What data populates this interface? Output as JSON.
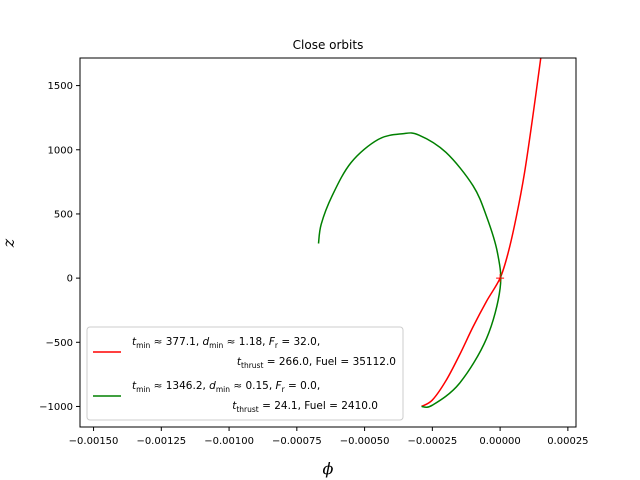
{
  "chart_data": {
    "type": "line",
    "title": "Close orbits",
    "xlabel": "ϕ",
    "ylabel": "z",
    "xlim": [
      -0.00155,
      0.00028
    ],
    "ylim": [
      -1160,
      1715
    ],
    "xticks": [
      -0.0015,
      -0.00125,
      -0.001,
      -0.00075,
      -0.0005,
      -0.00025,
      0.0,
      0.00025
    ],
    "xtick_labels": [
      "−0.00150",
      "−0.00125",
      "−0.00100",
      "−0.00075",
      "−0.00050",
      "−0.00025",
      "0.00000",
      "0.00025"
    ],
    "yticks": [
      -1000,
      -500,
      0,
      500,
      1000,
      1500
    ],
    "ytick_labels": [
      "−1000",
      "−500",
      "0",
      "500",
      "1000",
      "1500"
    ],
    "grid": false,
    "legend_position": "lower-left",
    "marker": {
      "x": 0.0,
      "y": 0,
      "symbol": "+"
    },
    "series": [
      {
        "color": "#ff0000",
        "legend_line1": {
          "t_sym": "t",
          "t_sub": "min",
          "t_val": " ≈  377.1, ",
          "d_sym": "d",
          "d_sub": "min",
          "d_val": " ≈ 1.18, ",
          "f_sym": "F",
          "f_sub": "r",
          "f_val": " =  32.0,"
        },
        "legend_line2": {
          "sym": "t",
          "sub": "thrust",
          "val": " =  266.0, Fuel = 35112.0"
        },
        "x": [
          -0.00029,
          -0.00025,
          -0.0002,
          -0.00015,
          -0.0001,
          -5e-05,
          0.0,
          3e-05,
          6e-05,
          9e-05,
          0.00012,
          0.00015
        ],
        "y": [
          -1000,
          -950,
          -800,
          -600,
          -380,
          -180,
          0,
          200,
          480,
          820,
          1250,
          1715
        ]
      },
      {
        "color": "#008000",
        "legend_line1": {
          "t_sym": "t",
          "t_sub": "min",
          "t_val": " ≈  1346.2, ",
          "d_sym": "d",
          "d_sub": "min",
          "d_val": " ≈  0.15, ",
          "f_sym": "F",
          "f_sub": "r",
          "f_val": " =  0.0,"
        },
        "legend_line2": {
          "sym": "t",
          "sub": "thrust",
          "val": " =  24.1, Fuel = 2410.0"
        },
        "x": [
          -0.00029,
          -0.00025,
          -0.00015,
          -5e-05,
          0.0,
          -1e-05,
          -5e-05,
          -0.0001,
          -0.0002,
          -0.0003,
          -0.00036,
          -0.00045,
          -0.00055,
          -0.00062,
          -0.00066,
          -0.00067
        ],
        "y": [
          -1000,
          -990,
          -820,
          -470,
          -80,
          200,
          480,
          720,
          980,
          1115,
          1125,
          1080,
          900,
          640,
          420,
          270
        ]
      }
    ]
  }
}
